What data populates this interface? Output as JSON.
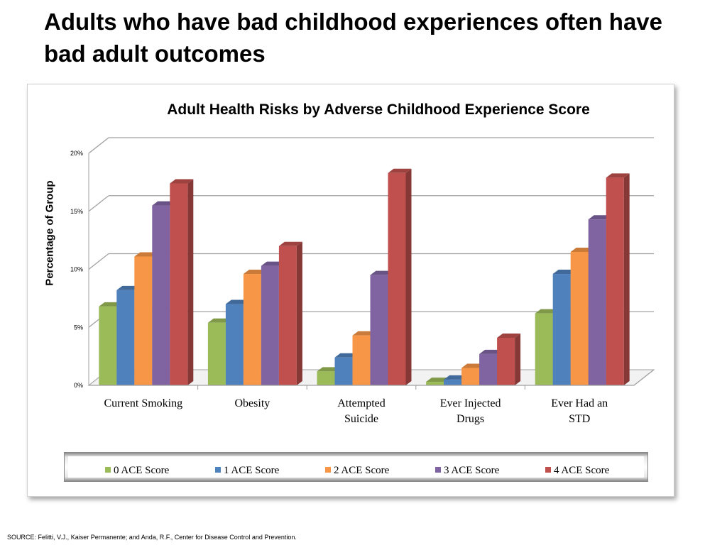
{
  "slide": {
    "title": "Adults who have bad childhood experiences often have bad adult outcomes",
    "source": "SOURCE: Felitti, V.J., Kaiser Permanente; and Anda, R.F., Center for Disease Control and Prevention."
  },
  "chart_data": {
    "type": "bar",
    "title": "Adult Health Risks by Adverse Childhood Experience Score",
    "xlabel": "",
    "ylabel": "Percentage of Group",
    "ylim": [
      0,
      20
    ],
    "yticks": [
      "0%",
      "5%",
      "10%",
      "15%",
      "20%"
    ],
    "categories": [
      "Current Smoking",
      "Obesity",
      "Attempted Suicide",
      "Ever Injected Drugs",
      "Ever Had an STD"
    ],
    "category_lines": [
      [
        "Current Smoking"
      ],
      [
        "Obesity"
      ],
      [
        "Attempted",
        "Suicide"
      ],
      [
        "Ever Injected",
        "Drugs"
      ],
      [
        "Ever Had an",
        "STD"
      ]
    ],
    "series": [
      {
        "name": "0 ACE Score",
        "color": "#9bbb59",
        "values": [
          6.8,
          5.4,
          1.2,
          0.3,
          6.2
        ]
      },
      {
        "name": "1 ACE Score",
        "color": "#4f81bd",
        "values": [
          8.2,
          7.0,
          2.4,
          0.5,
          9.6
        ]
      },
      {
        "name": "2 ACE Score",
        "color": "#f79646",
        "values": [
          11.1,
          9.6,
          4.3,
          1.5,
          11.5
        ]
      },
      {
        "name": "3 ACE Score",
        "color": "#8064a2",
        "values": [
          15.5,
          10.3,
          9.5,
          2.7,
          14.3
        ]
      },
      {
        "name": "4 ACE Score",
        "color": "#c0504d",
        "values": [
          17.4,
          12.0,
          18.3,
          4.1,
          17.9
        ]
      }
    ],
    "grid": true,
    "legend_position": "bottom"
  }
}
